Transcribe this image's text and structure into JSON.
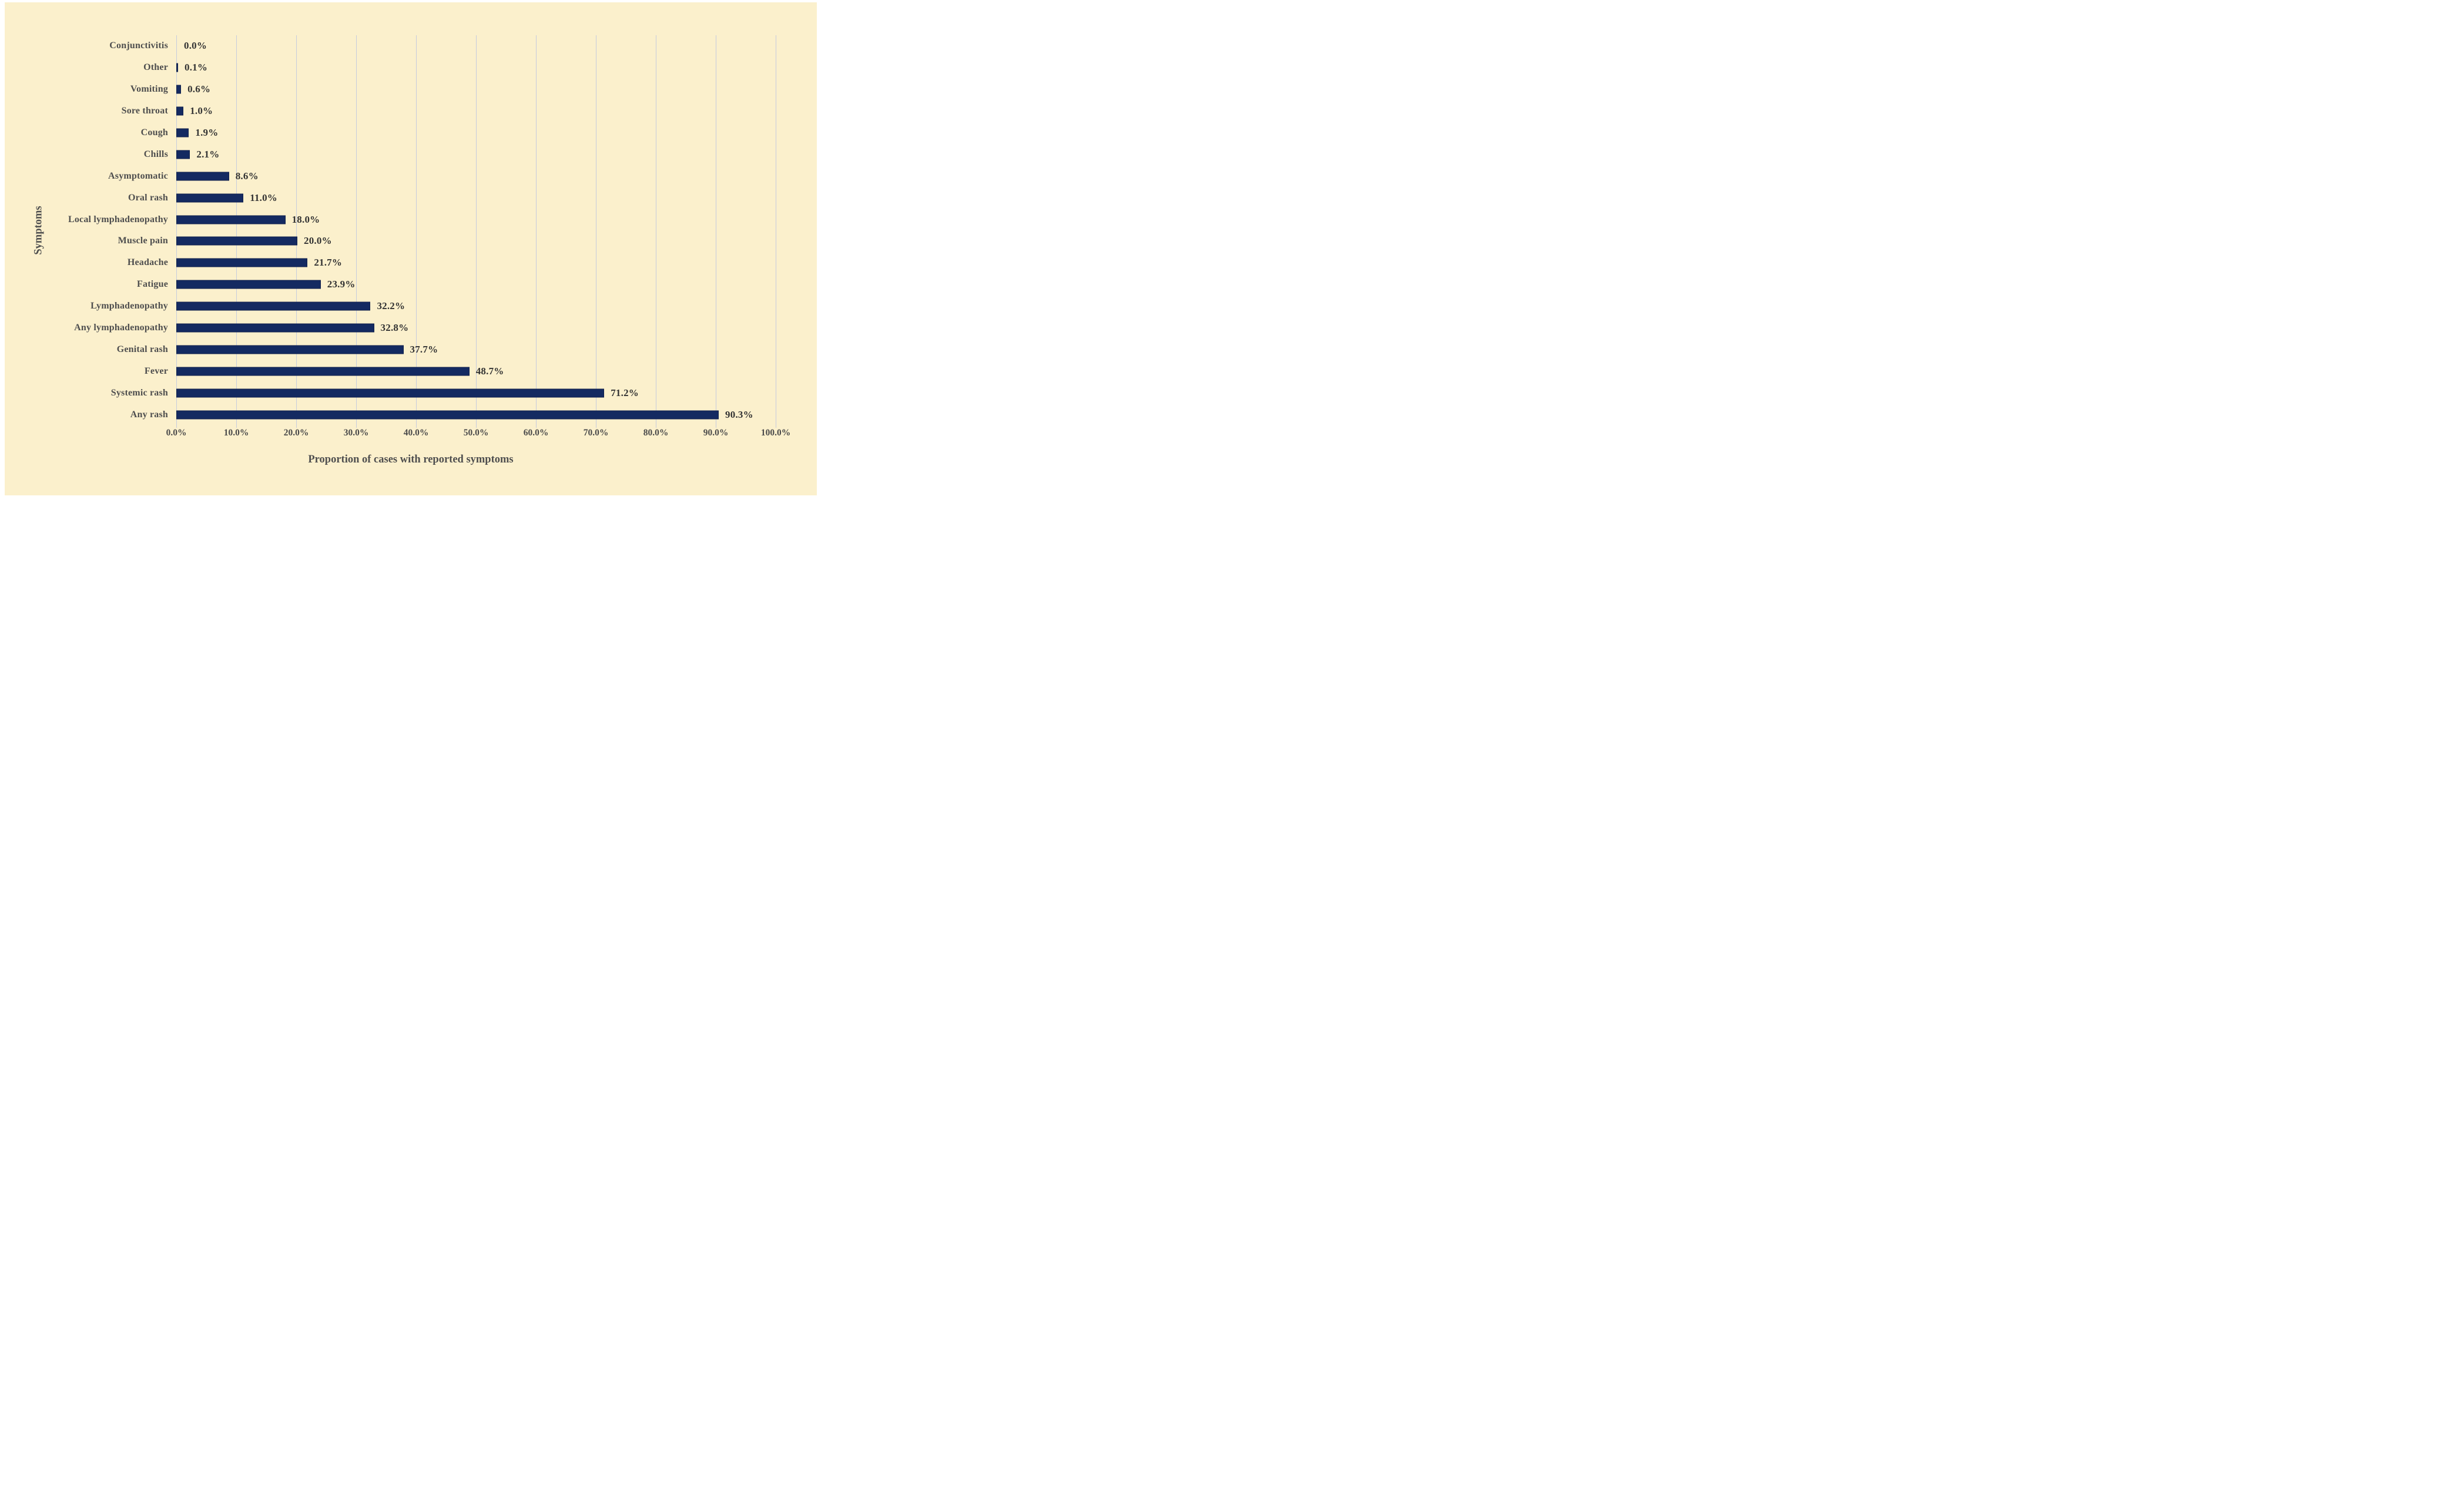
{
  "chart_data": {
    "type": "bar",
    "orientation": "horizontal",
    "title": "",
    "xlabel": "Proportion of cases with reported symptoms",
    "ylabel": "Symptoms",
    "categories": [
      "Conjunctivitis",
      "Other",
      "Vomiting",
      "Sore throat",
      "Cough",
      "Chills",
      "Asymptomatic",
      "Oral rash",
      "Local lymphadenopathy",
      "Muscle pain",
      "Headache",
      "Fatigue",
      "Lymphadenopathy",
      "Any lymphadenopathy",
      "Genital rash",
      "Fever",
      "Systemic rash",
      "Any rash"
    ],
    "values": [
      0.0,
      0.1,
      0.6,
      1.0,
      1.9,
      2.1,
      8.6,
      11.0,
      18.0,
      20.0,
      21.7,
      23.9,
      32.2,
      32.8,
      37.7,
      48.7,
      71.2,
      90.3
    ],
    "value_labels": [
      "0.0%",
      "0.1%",
      "0.6%",
      "1.0%",
      "1.9%",
      "2.1%",
      "8.6%",
      "11.0%",
      "18.0%",
      "20.0%",
      "21.7%",
      "23.9%",
      "32.2%",
      "32.8%",
      "37.7%",
      "48.7%",
      "71.2%",
      "90.3%"
    ],
    "x_ticks": [
      "0.0%",
      "10.0%",
      "20.0%",
      "30.0%",
      "40.0%",
      "50.0%",
      "60.0%",
      "70.0%",
      "80.0%",
      "90.0%",
      "100.0%"
    ],
    "xlim": [
      0,
      100
    ],
    "grid": true,
    "legend": false,
    "colors": {
      "bar": "#142A61",
      "panel_background": "#FBF0CC",
      "page_background": "#FFFFFF",
      "gridline": "#C5CBDE",
      "category_text": "#4E4E4E",
      "value_text": "#333333"
    }
  }
}
